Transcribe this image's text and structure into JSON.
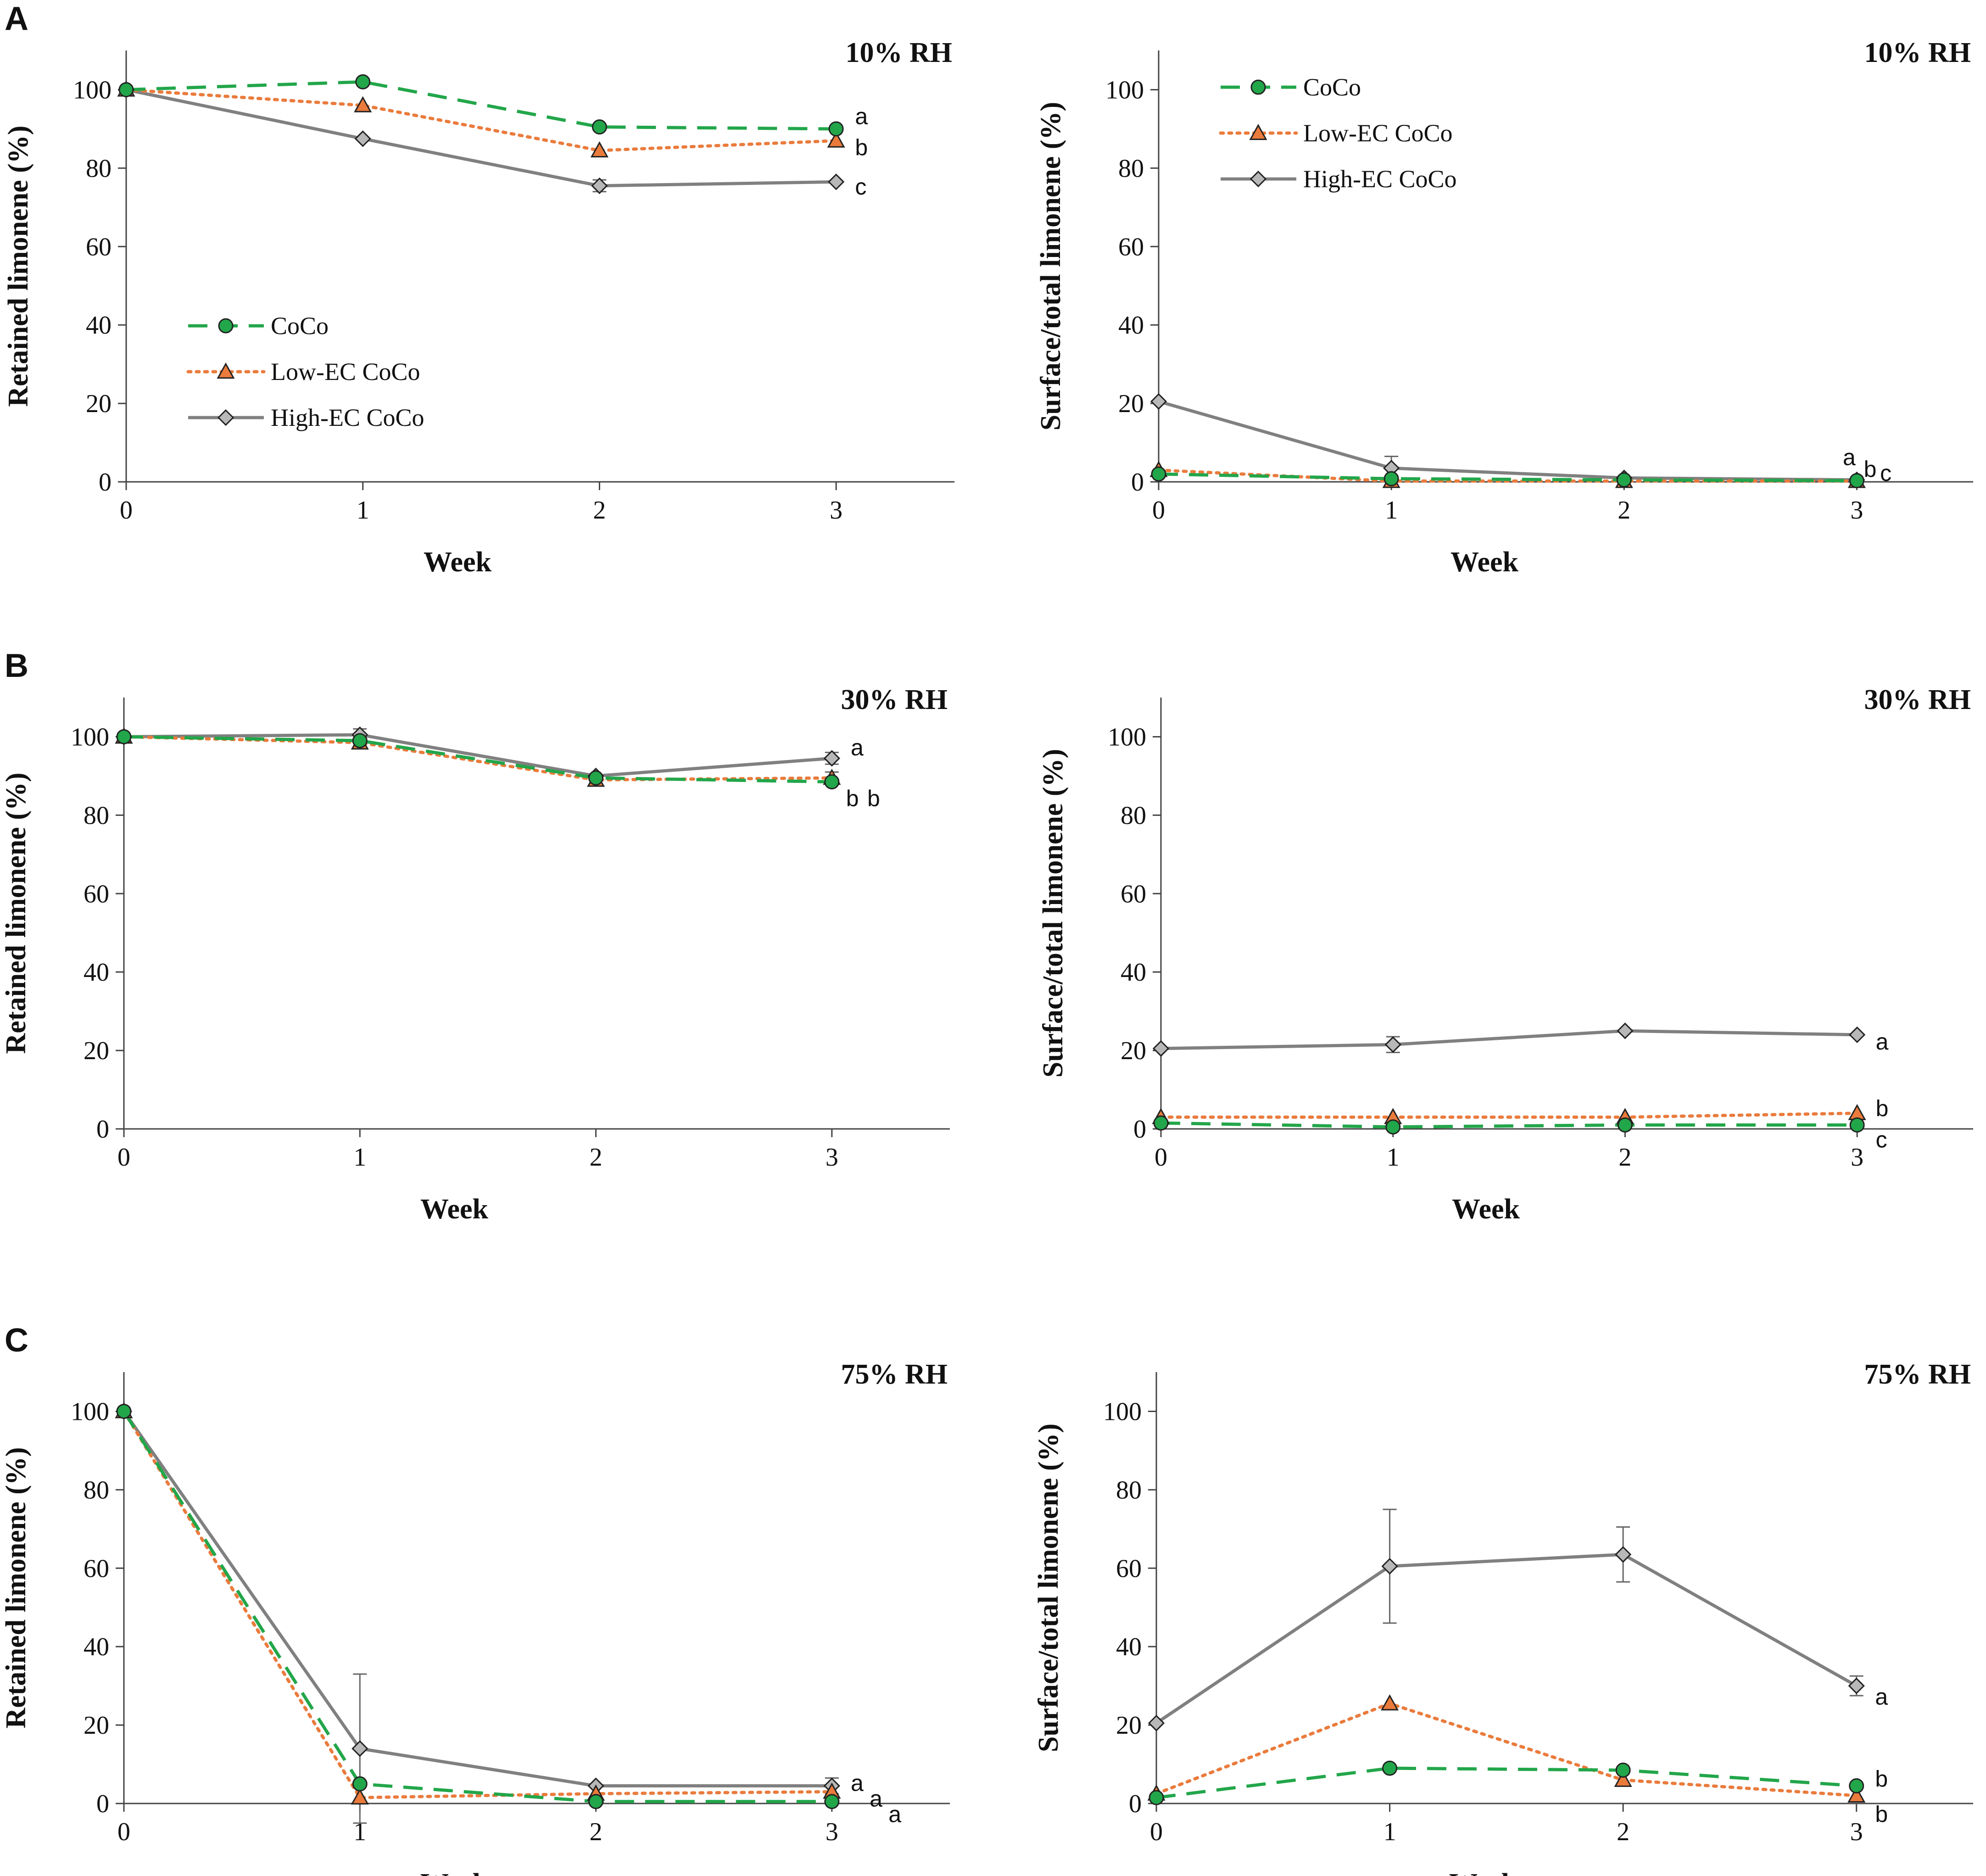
{
  "figure": {
    "series_styles": {
      "CoCo": {
        "color": "#22a64a",
        "marker": "circle",
        "dash": "42,24",
        "fill": "#22a64a"
      },
      "Low-EC CoCo": {
        "color": "#ea7b3c",
        "marker": "triangle",
        "dash": "6,12",
        "fill": "#ea7b3c"
      },
      "High-EC CoCo": {
        "color": "#808080",
        "marker": "diamond",
        "dash": "",
        "fill": "#b8b8b8"
      }
    }
  },
  "chart_data": [
    {
      "id": "A-left",
      "panel": "A",
      "type": "line",
      "title": "10% RH",
      "xlabel": "Week",
      "ylabel": "Retained limonene (%)",
      "x": [
        0,
        1,
        2,
        3
      ],
      "xlim": [
        0,
        3.5
      ],
      "ylim": [
        0,
        110
      ],
      "yticks": [
        0,
        20,
        40,
        60,
        80,
        100
      ],
      "legend": [
        "CoCo",
        "Low-EC CoCo",
        "High-EC CoCo"
      ],
      "series": [
        {
          "name": "CoCo",
          "values": [
            100,
            102,
            90.5,
            90
          ],
          "errors": [
            0,
            0,
            0,
            0
          ]
        },
        {
          "name": "Low-EC CoCo",
          "values": [
            100,
            96,
            84.5,
            87
          ],
          "errors": [
            0,
            0,
            0,
            0
          ]
        },
        {
          "name": "High-EC CoCo",
          "values": [
            100,
            87.5,
            75.5,
            76.5
          ],
          "errors": [
            0,
            0,
            1.5,
            0
          ]
        }
      ],
      "significance": [
        {
          "text": "a",
          "x": 3.08,
          "y": 93
        },
        {
          "text": "b",
          "x": 3.08,
          "y": 85
        },
        {
          "text": "c",
          "x": 3.08,
          "y": 75
        }
      ]
    },
    {
      "id": "A-right",
      "panel": "",
      "type": "line",
      "title": "10% RH",
      "xlabel": "Week",
      "ylabel": "Surface/total limonene (%)",
      "x": [
        0,
        1,
        2,
        3
      ],
      "xlim": [
        0,
        3.5
      ],
      "ylim": [
        0,
        110
      ],
      "yticks": [
        0,
        20,
        40,
        60,
        80,
        100
      ],
      "legend": [
        "CoCo",
        "Low-EC CoCo",
        "High-EC CoCo"
      ],
      "series": [
        {
          "name": "CoCo",
          "values": [
            2,
            0.8,
            0.5,
            0.3
          ],
          "errors": [
            0,
            0,
            0,
            0
          ]
        },
        {
          "name": "Low-EC CoCo",
          "values": [
            3,
            0.2,
            0.2,
            0.2
          ],
          "errors": [
            0,
            0,
            0,
            0
          ]
        },
        {
          "name": "High-EC CoCo",
          "values": [
            20.5,
            3.5,
            1,
            0.5
          ],
          "errors": [
            0,
            3,
            0,
            0
          ]
        }
      ],
      "significance": [
        {
          "text": "a",
          "x": 2.94,
          "y": 6
        },
        {
          "text": "b",
          "x": 3.03,
          "y": 3
        },
        {
          "text": "c",
          "x": 3.1,
          "y": 2
        }
      ]
    },
    {
      "id": "B-left",
      "panel": "B",
      "type": "line",
      "title": "30% RH",
      "xlabel": "Week",
      "ylabel": "Retained limonene (%)",
      "x": [
        0,
        1,
        2,
        3
      ],
      "xlim": [
        0,
        3.5
      ],
      "ylim": [
        0,
        110
      ],
      "yticks": [
        0,
        20,
        40,
        60,
        80,
        100
      ],
      "legend": [],
      "series": [
        {
          "name": "CoCo",
          "values": [
            100,
            99,
            89.5,
            88.5
          ],
          "errors": [
            0,
            0,
            0,
            0
          ]
        },
        {
          "name": "Low-EC CoCo",
          "values": [
            100,
            98.5,
            89,
            89.5
          ],
          "errors": [
            0,
            0,
            0,
            1.5
          ]
        },
        {
          "name": "High-EC CoCo",
          "values": [
            100,
            100.5,
            90,
            94.5
          ],
          "errors": [
            0,
            1.5,
            0,
            1.5
          ]
        }
      ],
      "significance": [
        {
          "text": "a",
          "x": 3.08,
          "y": 97
        },
        {
          "text": "b",
          "x": 3.06,
          "y": 84
        },
        {
          "text": "b",
          "x": 3.15,
          "y": 84
        }
      ]
    },
    {
      "id": "B-right",
      "panel": "",
      "type": "line",
      "title": "30% RH",
      "xlabel": "Week",
      "ylabel": "Surface/total limonene (%)",
      "x": [
        0,
        1,
        2,
        3
      ],
      "xlim": [
        0,
        3.5
      ],
      "ylim": [
        0,
        110
      ],
      "yticks": [
        0,
        20,
        40,
        60,
        80,
        100
      ],
      "legend": [],
      "series": [
        {
          "name": "CoCo",
          "values": [
            1.5,
            0.5,
            1,
            1
          ],
          "errors": [
            0,
            0,
            0,
            0
          ]
        },
        {
          "name": "Low-EC CoCo",
          "values": [
            3,
            3,
            3,
            4
          ],
          "errors": [
            0,
            0,
            0,
            0
          ]
        },
        {
          "name": "High-EC CoCo",
          "values": [
            20.5,
            21.5,
            25,
            24
          ],
          "errors": [
            0,
            2,
            0,
            0
          ]
        }
      ],
      "significance": [
        {
          "text": "a",
          "x": 3.08,
          "y": 22
        },
        {
          "text": "b",
          "x": 3.08,
          "y": 5
        },
        {
          "text": "c",
          "x": 3.08,
          "y": -3
        }
      ]
    },
    {
      "id": "C-left",
      "panel": "C",
      "type": "line",
      "title": "75% RH",
      "xlabel": "Week",
      "ylabel": "Retained limonene (%)",
      "x": [
        0,
        1,
        2,
        3
      ],
      "xlim": [
        0,
        3.5
      ],
      "ylim": [
        0,
        110
      ],
      "yticks": [
        0,
        20,
        40,
        60,
        80,
        100
      ],
      "legend": [],
      "series": [
        {
          "name": "CoCo",
          "values": [
            100,
            5,
            0.5,
            0.5
          ],
          "errors": [
            0,
            0,
            0,
            0
          ]
        },
        {
          "name": "Low-EC CoCo",
          "values": [
            100,
            1.5,
            2.5,
            3
          ],
          "errors": [
            0,
            0,
            0,
            0
          ]
        },
        {
          "name": "High-EC CoCo",
          "values": [
            100,
            14,
            4.5,
            4.5
          ],
          "errors": [
            0,
            19,
            0,
            2
          ]
        }
      ],
      "significance": [
        {
          "text": "a",
          "x": 3.08,
          "y": 5
        },
        {
          "text": "a",
          "x": 3.16,
          "y": 1
        },
        {
          "text": "a",
          "x": 3.24,
          "y": -3
        }
      ]
    },
    {
      "id": "C-right",
      "panel": "",
      "type": "line",
      "title": "75% RH",
      "xlabel": "Week",
      "ylabel": "Surface/total limonene (%)",
      "x": [
        0,
        1,
        2,
        3
      ],
      "xlim": [
        0,
        3.5
      ],
      "ylim": [
        0,
        110
      ],
      "yticks": [
        0,
        20,
        40,
        60,
        80,
        100
      ],
      "legend": [],
      "series": [
        {
          "name": "CoCo",
          "values": [
            1.5,
            9,
            8.5,
            4.5
          ],
          "errors": [
            0,
            0,
            0,
            0
          ]
        },
        {
          "name": "Low-EC CoCo",
          "values": [
            2.5,
            25.5,
            6,
            2
          ],
          "errors": [
            0,
            0,
            0,
            0
          ]
        },
        {
          "name": "High-EC CoCo",
          "values": [
            20.5,
            60.5,
            63.5,
            30
          ],
          "errors": [
            0,
            14.5,
            7,
            2.5
          ]
        }
      ],
      "significance": [
        {
          "text": "a",
          "x": 3.08,
          "y": 27
        },
        {
          "text": "b",
          "x": 3.08,
          "y": 6
        },
        {
          "text": "b",
          "x": 3.08,
          "y": -3
        }
      ]
    }
  ]
}
